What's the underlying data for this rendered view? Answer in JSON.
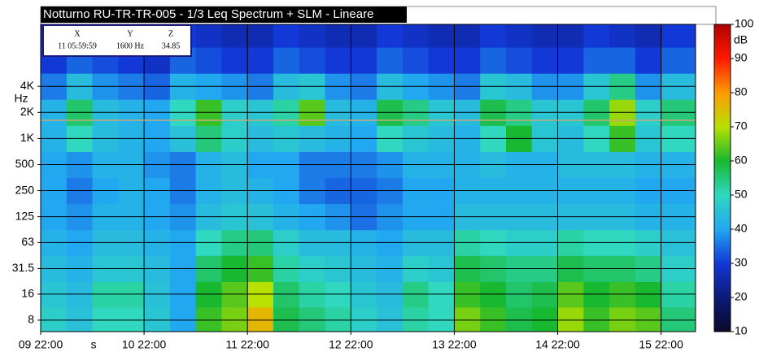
{
  "chart_data": {
    "type": "heatmap",
    "title": "Notturno RU-TR-TR-005 - 1/3 Leq Spectrum + SLM - Lineare",
    "x_label": "s",
    "y_label": "Hz",
    "colorbar_label": "dB",
    "cursor": {
      "headers": [
        "X",
        "Y",
        "Z"
      ],
      "values": [
        "11 05:59:59",
        "1600 Hz",
        "34.85"
      ]
    },
    "x": [
      0,
      6,
      12,
      18,
      24,
      30,
      36,
      42,
      48,
      54,
      60,
      66,
      72,
      78,
      84,
      90,
      96,
      102,
      108,
      114,
      120,
      126,
      132,
      138,
      144,
      152
    ],
    "y": [
      8,
      16,
      31.5,
      63,
      125,
      250,
      500,
      1000,
      2000,
      4000,
      8000,
      16000
    ],
    "z": [
      [
        48,
        45,
        50,
        50,
        46,
        40,
        62,
        66,
        76,
        58,
        55,
        52,
        48,
        45,
        52,
        50,
        66,
        62,
        58,
        60,
        68,
        62,
        66,
        64,
        55
      ],
      [
        46,
        44,
        52,
        52,
        45,
        40,
        60,
        64,
        70,
        56,
        52,
        50,
        46,
        44,
        54,
        50,
        62,
        60,
        56,
        58,
        64,
        60,
        62,
        60,
        52
      ],
      [
        44,
        42,
        46,
        46,
        44,
        40,
        56,
        60,
        62,
        52,
        48,
        46,
        44,
        42,
        48,
        46,
        58,
        56,
        54,
        54,
        58,
        56,
        56,
        54,
        48
      ],
      [
        42,
        40,
        44,
        44,
        42,
        40,
        50,
        54,
        55,
        48,
        44,
        44,
        42,
        40,
        44,
        44,
        52,
        50,
        48,
        48,
        52,
        50,
        50,
        48,
        45
      ],
      [
        40,
        38,
        42,
        42,
        40,
        38,
        44,
        46,
        45,
        42,
        40,
        38,
        35,
        38,
        40,
        40,
        44,
        44,
        44,
        44,
        44,
        44,
        44,
        42,
        42
      ],
      [
        40,
        36,
        40,
        42,
        40,
        36,
        42,
        44,
        42,
        40,
        36,
        34,
        34,
        36,
        40,
        40,
        42,
        42,
        42,
        42,
        42,
        42,
        42,
        40,
        40
      ],
      [
        40,
        38,
        42,
        42,
        38,
        36,
        42,
        44,
        40,
        40,
        36,
        36,
        36,
        38,
        42,
        42,
        42,
        44,
        42,
        42,
        44,
        44,
        44,
        42,
        42
      ],
      [
        42,
        50,
        44,
        42,
        40,
        45,
        55,
        48,
        44,
        46,
        44,
        42,
        40,
        50,
        46,
        44,
        42,
        50,
        60,
        46,
        44,
        50,
        62,
        46,
        50
      ],
      [
        42,
        56,
        44,
        42,
        40,
        50,
        62,
        48,
        46,
        52,
        64,
        44,
        42,
        58,
        54,
        46,
        44,
        58,
        54,
        46,
        46,
        56,
        68,
        48,
        55
      ],
      [
        36,
        44,
        38,
        36,
        34,
        42,
        40,
        38,
        36,
        44,
        46,
        38,
        36,
        44,
        40,
        38,
        36,
        46,
        44,
        38,
        38,
        46,
        54,
        38,
        44
      ],
      [
        30,
        34,
        32,
        30,
        28,
        34,
        32,
        30,
        30,
        34,
        32,
        30,
        30,
        34,
        32,
        30,
        30,
        34,
        32,
        30,
        30,
        34,
        34,
        30,
        34
      ],
      [
        26,
        30,
        28,
        26,
        26,
        30,
        28,
        26,
        26,
        30,
        28,
        26,
        26,
        30,
        28,
        26,
        26,
        30,
        28,
        26,
        26,
        30,
        28,
        26,
        30
      ]
    ],
    "xlim": [
      0,
      152
    ],
    "xticks": [
      {
        "value": 0,
        "label": "09 22:00"
      },
      {
        "value": 24,
        "label": "10 22:00"
      },
      {
        "value": 48,
        "label": "11 22:00"
      },
      {
        "value": 72,
        "label": "12 22:00"
      },
      {
        "value": 96,
        "label": "13 22:00"
      },
      {
        "value": 120,
        "label": "14 22:00"
      },
      {
        "value": 144,
        "label": "15 22:00"
      }
    ],
    "ylim": [
      5.9,
      20750
    ],
    "log_y": true,
    "yticks": [
      8,
      16,
      31.5,
      63,
      125,
      250,
      500,
      {
        "value": 1000,
        "label": "1K"
      },
      {
        "value": 2000,
        "label": "2K"
      },
      {
        "value": 4000,
        "label": "4K"
      }
    ],
    "grid": true,
    "clim": [
      10,
      100
    ],
    "cticks": [
      10,
      20,
      30,
      40,
      50,
      60,
      70,
      80,
      90,
      100
    ],
    "colormap": [
      "#0a0a28",
      "#0c1a78",
      "#1238d8",
      "#22a8f0",
      "#30d8c0",
      "#18b830",
      "#b8e000",
      "#ff9a00",
      "#ff1a00",
      "#b00000"
    ]
  }
}
